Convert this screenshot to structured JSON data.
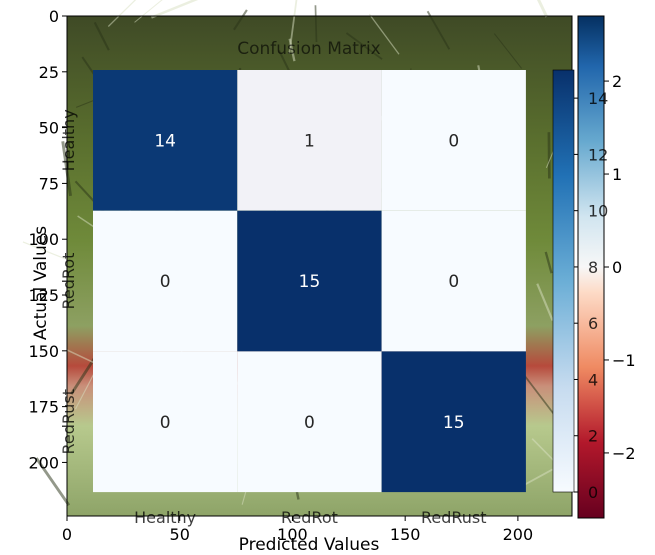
{
  "chart_data": [
    {
      "type": "heatmap",
      "title": "Confusion Matrix",
      "xlabel": "Predicted Values",
      "ylabel": "Actual Values",
      "x_categories": [
        "Healthy",
        "RedRot",
        "RedRust"
      ],
      "y_categories": [
        "Healthy",
        "RedRot",
        "RedRust"
      ],
      "values": [
        [
          14,
          1,
          0
        ],
        [
          0,
          15,
          0
        ],
        [
          0,
          0,
          15
        ]
      ],
      "colormap": "Blues",
      "colorbar": {
        "range": [
          0,
          15
        ],
        "ticks": [
          "0",
          "2",
          "4",
          "6",
          "8",
          "10",
          "12",
          "14"
        ]
      }
    },
    {
      "type": "image",
      "description_axes": "background image axes",
      "xlim": [
        0,
        224
      ],
      "ylim": [
        224,
        0
      ],
      "x_ticks": [
        "0",
        "50",
        "100",
        "150",
        "200"
      ],
      "y_ticks": [
        "0",
        "25",
        "50",
        "75",
        "100",
        "125",
        "150",
        "175",
        "200"
      ],
      "colormap": "RdBu",
      "colorbar": {
        "range": [
          -2.7,
          2.7
        ],
        "ticks": [
          "−2",
          "−1",
          "0",
          "1",
          "2"
        ]
      }
    }
  ],
  "colors": {
    "dark_cell": "#08306b",
    "light_cell": "#f7fbff",
    "pale_cell": "#e6eff9",
    "grass_dark": "#2f3a1c",
    "grass_mid": "#6f8a3a",
    "grass_light": "#b7c98d",
    "red_band": "#b64a3c"
  }
}
